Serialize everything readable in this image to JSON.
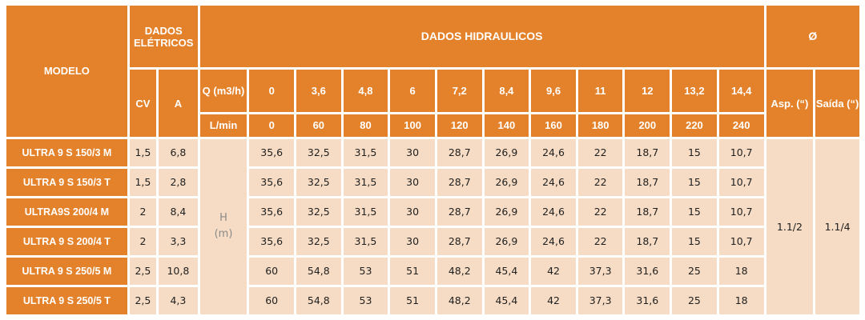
{
  "headers": {
    "modelo": "MODELO",
    "dados_eletricos": "DADOS ELÉTRICOS",
    "dados_hidraulicos": "DADOS HIDRAULICOS",
    "diametro": "Ø",
    "cv": "CV",
    "a": "A",
    "q_label": "Q (m3/h)",
    "lmin_label": "L/min",
    "asp": "Asp. (“)",
    "saida": "Saída (“)"
  },
  "q_m3h": [
    "0",
    "3,6",
    "4,8",
    "6",
    "7,2",
    "8,4",
    "9,6",
    "11",
    "12",
    "13,2",
    "14,4"
  ],
  "l_min": [
    "0",
    "60",
    "80",
    "100",
    "120",
    "140",
    "160",
    "180",
    "200",
    "220",
    "240"
  ],
  "h_label": {
    "h": "H",
    "unit": "(m)"
  },
  "rows": [
    {
      "model": "ULTRA 9 S 150/3 M",
      "cv": "1,5",
      "a": "6,8",
      "values": [
        "35,6",
        "32,5",
        "31,5",
        "30",
        "28,7",
        "26,9",
        "24,6",
        "22",
        "18,7",
        "15",
        "10,7"
      ]
    },
    {
      "model": "ULTRA 9 S 150/3 T",
      "cv": "1,5",
      "a": "2,8",
      "values": [
        "35,6",
        "32,5",
        "31,5",
        "30",
        "28,7",
        "26,9",
        "24,6",
        "22",
        "18,7",
        "15",
        "10,7"
      ]
    },
    {
      "model": "ULTRA9S 200/4 M",
      "cv": "2",
      "a": "8,4",
      "values": [
        "35,6",
        "32,5",
        "31,5",
        "30",
        "28,7",
        "26,9",
        "24,6",
        "22",
        "18,7",
        "15",
        "10,7"
      ]
    },
    {
      "model": "ULTRA 9 S 200/4 T",
      "cv": "2",
      "a": "3,3",
      "values": [
        "35,6",
        "32,5",
        "31,5",
        "30",
        "28,7",
        "26,9",
        "24,6",
        "22",
        "18,7",
        "15",
        "10,7"
      ]
    },
    {
      "model": "ULTRA 9 S 250/5 M",
      "cv": "2,5",
      "a": "10,8",
      "values": [
        "60",
        "54,8",
        "53",
        "51",
        "48,2",
        "45,4",
        "42",
        "37,3",
        "31,6",
        "25",
        "18"
      ]
    },
    {
      "model": "ULTRA 9 S 250/5 T",
      "cv": "2,5",
      "a": "4,3",
      "values": [
        "60",
        "54,8",
        "53",
        "51",
        "48,2",
        "45,4",
        "42",
        "37,3",
        "31,6",
        "25",
        "18"
      ]
    }
  ],
  "diameter": {
    "asp": "1.1/2",
    "saida": "1.1/4"
  },
  "colors": {
    "header": "#e4822b",
    "cell": "#f6dcc4",
    "text": "#1f1f1f"
  }
}
